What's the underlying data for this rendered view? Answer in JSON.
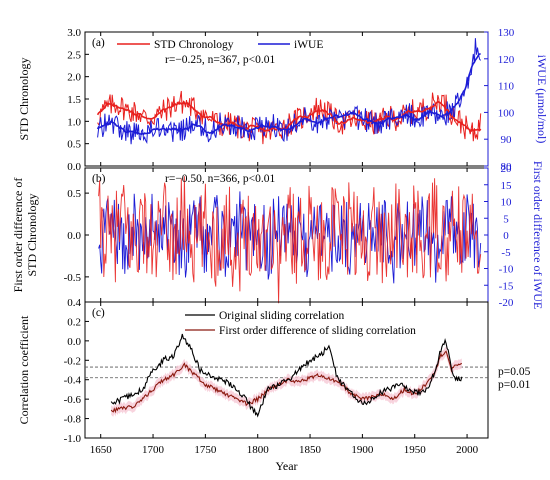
{
  "colors": {
    "std": "#e8201e",
    "iwue": "#1c1cd6",
    "std_diff": "#b21414",
    "original_sliding": "#000000",
    "first_diff_sliding": "#8b1a10",
    "ci_band": "#f6c9d6",
    "threshold": "#555555"
  },
  "chart_data": [
    {
      "type": "line",
      "panel_label": "(a)",
      "annotation": "r=−0.25,  n=367,  p<0.01",
      "ylabel": "STD Chronology",
      "y2label": "iWUE (μmol/mol)",
      "xlim": [
        1635,
        2020
      ],
      "ylim": [
        0,
        3.0
      ],
      "yticks": [
        "0.0",
        "0.5",
        "1.0",
        "1.5",
        "2.0",
        "2.5",
        "3.0"
      ],
      "y2lim": [
        80,
        130
      ],
      "y2ticks": [
        "80",
        "90",
        "100",
        "110",
        "120",
        "130"
      ],
      "legend": "top",
      "series": [
        {
          "name": "STD Chronology",
          "axis": "left",
          "x": [
            1647,
            1655,
            1665,
            1675,
            1685,
            1695,
            1705,
            1715,
            1725,
            1735,
            1745,
            1755,
            1765,
            1775,
            1785,
            1795,
            1805,
            1815,
            1825,
            1835,
            1845,
            1855,
            1865,
            1875,
            1885,
            1895,
            1905,
            1915,
            1925,
            1935,
            1945,
            1955,
            1965,
            1975,
            1985,
            1995,
            2005,
            2013
          ],
          "values": [
            1.1,
            1.3,
            1.4,
            1.25,
            1.2,
            1.05,
            1.15,
            1.3,
            1.45,
            1.35,
            1.2,
            1.05,
            0.9,
            0.95,
            0.85,
            0.8,
            0.75,
            0.8,
            0.9,
            1.0,
            1.1,
            1.3,
            1.25,
            1.0,
            0.95,
            1.05,
            1.0,
            0.95,
            1.1,
            1.05,
            1.2,
            1.25,
            1.35,
            1.5,
            1.2,
            0.95,
            0.7,
            0.95
          ]
        },
        {
          "name": "iWUE",
          "axis": "right",
          "x": [
            1647,
            1655,
            1665,
            1675,
            1685,
            1695,
            1705,
            1715,
            1725,
            1735,
            1745,
            1755,
            1765,
            1775,
            1785,
            1795,
            1805,
            1815,
            1825,
            1835,
            1845,
            1855,
            1865,
            1875,
            1885,
            1895,
            1905,
            1915,
            1925,
            1935,
            1945,
            1955,
            1965,
            1975,
            1985,
            1995,
            2000,
            2004,
            2008,
            2013
          ],
          "values": [
            93,
            96,
            95,
            93,
            92,
            93,
            95,
            93,
            92,
            96,
            94,
            93,
            96,
            95,
            94,
            93,
            95,
            96,
            93,
            96,
            98,
            96,
            98,
            97,
            96,
            98,
            97,
            96,
            98,
            97,
            99,
            97,
            100,
            98,
            101,
            104,
            109,
            116,
            124,
            120
          ]
        }
      ]
    },
    {
      "type": "line",
      "panel_label": "(b)",
      "annotation": "r=−0.50,  n=366,  p<0.01",
      "ylabel": "First order difference of STD Chronology",
      "y2label": "First order difference of iWUE",
      "xlim": [
        1635,
        2020
      ],
      "ylim": [
        -0.8,
        0.8
      ],
      "yticks": [
        "-0.5",
        "0.0",
        "0.5"
      ],
      "y2lim": [
        -20,
        20
      ],
      "y2ticks": [
        "-20",
        "-15",
        "-10",
        "-5",
        "0",
        "5",
        "10",
        "15",
        "20"
      ],
      "series": [
        {
          "name": "STD Chronology",
          "axis": "left",
          "x": [
            1650,
            1660,
            1670,
            1680,
            1690,
            1700,
            1710,
            1720,
            1730,
            1740,
            1750,
            1760,
            1770,
            1780,
            1790,
            1800,
            1810,
            1820,
            1830,
            1840,
            1850,
            1860,
            1870,
            1880,
            1890,
            1900,
            1910,
            1920,
            1930,
            1940,
            1950,
            1960,
            1970,
            1980,
            1990,
            2000,
            2010
          ],
          "values": [
            0.3,
            -0.4,
            0.5,
            -0.3,
            0.4,
            -0.5,
            0.3,
            -0.2,
            0.6,
            -0.4,
            0.2,
            -0.3,
            0.4,
            -0.6,
            0.3,
            -0.2,
            0.5,
            -0.7,
            0.4,
            -0.3,
            0.6,
            -0.4,
            0.3,
            -0.2,
            0.4,
            -0.5,
            0.3,
            -0.3,
            0.5,
            -0.4,
            0.2,
            -0.3,
            0.4,
            -0.5,
            0.3,
            -0.2,
            0.2
          ]
        },
        {
          "name": "iWUE",
          "axis": "right",
          "x": [
            1650,
            1660,
            1670,
            1680,
            1690,
            1700,
            1710,
            1720,
            1730,
            1740,
            1750,
            1760,
            1770,
            1780,
            1790,
            1800,
            1810,
            1820,
            1830,
            1840,
            1850,
            1860,
            1870,
            1880,
            1890,
            1900,
            1910,
            1920,
            1930,
            1940,
            1950,
            1960,
            1970,
            1980,
            1990,
            2000,
            2010
          ],
          "values": [
            -6,
            8,
            -9,
            7,
            -8,
            10,
            -6,
            5,
            -12,
            8,
            -5,
            7,
            -9,
            12,
            -6,
            5,
            -10,
            15,
            -8,
            6,
            -12,
            9,
            -6,
            5,
            -9,
            10,
            -6,
            7,
            -10,
            8,
            -5,
            6,
            -9,
            10,
            -6,
            5,
            -5
          ]
        }
      ]
    },
    {
      "type": "line",
      "panel_label": "(c)",
      "ylabel": "Correlation coefficient",
      "xlabel": "Year",
      "xlim": [
        1635,
        2020
      ],
      "xticks": [
        "1650",
        "1700",
        "1750",
        "1800",
        "1850",
        "1900",
        "1950",
        "2000"
      ],
      "ylim": [
        -1.0,
        0.4
      ],
      "yticks": [
        "-1.0",
        "-0.8",
        "-0.6",
        "-0.4",
        "-0.2",
        "0.0",
        "0.2",
        "0.4"
      ],
      "thresholds": [
        {
          "label": "p=0.05",
          "value": -0.27
        },
        {
          "label": "p=0.01",
          "value": -0.38
        }
      ],
      "legend": "top",
      "series": [
        {
          "name": "Original sliding correlation",
          "x": [
            1660,
            1670,
            1680,
            1690,
            1700,
            1710,
            1720,
            1728,
            1735,
            1745,
            1755,
            1765,
            1775,
            1785,
            1795,
            1800,
            1810,
            1820,
            1830,
            1840,
            1850,
            1860,
            1868,
            1875,
            1885,
            1895,
            1905,
            1915,
            1925,
            1935,
            1945,
            1955,
            1965,
            1975,
            1980,
            1985,
            1990,
            1995
          ],
          "values": [
            -0.65,
            -0.6,
            -0.55,
            -0.5,
            -0.3,
            -0.2,
            -0.15,
            0.05,
            -0.05,
            -0.3,
            -0.35,
            -0.4,
            -0.45,
            -0.55,
            -0.7,
            -0.75,
            -0.5,
            -0.45,
            -0.4,
            -0.3,
            -0.2,
            -0.15,
            -0.05,
            -0.35,
            -0.5,
            -0.6,
            -0.65,
            -0.55,
            -0.5,
            -0.45,
            -0.5,
            -0.55,
            -0.45,
            -0.1,
            0.0,
            -0.3,
            -0.4,
            -0.38
          ]
        },
        {
          "name": "First order difference of sliding correlation",
          "x": [
            1660,
            1670,
            1680,
            1690,
            1700,
            1710,
            1720,
            1730,
            1740,
            1750,
            1760,
            1770,
            1780,
            1790,
            1800,
            1810,
            1820,
            1830,
            1840,
            1850,
            1860,
            1870,
            1880,
            1890,
            1900,
            1910,
            1920,
            1930,
            1940,
            1950,
            1960,
            1970,
            1975,
            1980,
            1985,
            1990,
            1995
          ],
          "values": [
            -0.72,
            -0.7,
            -0.68,
            -0.6,
            -0.5,
            -0.4,
            -0.35,
            -0.25,
            -0.35,
            -0.45,
            -0.5,
            -0.55,
            -0.6,
            -0.65,
            -0.6,
            -0.5,
            -0.45,
            -0.4,
            -0.42,
            -0.38,
            -0.35,
            -0.4,
            -0.45,
            -0.55,
            -0.6,
            -0.58,
            -0.55,
            -0.6,
            -0.5,
            -0.55,
            -0.45,
            -0.3,
            -0.15,
            -0.1,
            -0.3,
            -0.25,
            -0.22
          ]
        }
      ]
    }
  ]
}
